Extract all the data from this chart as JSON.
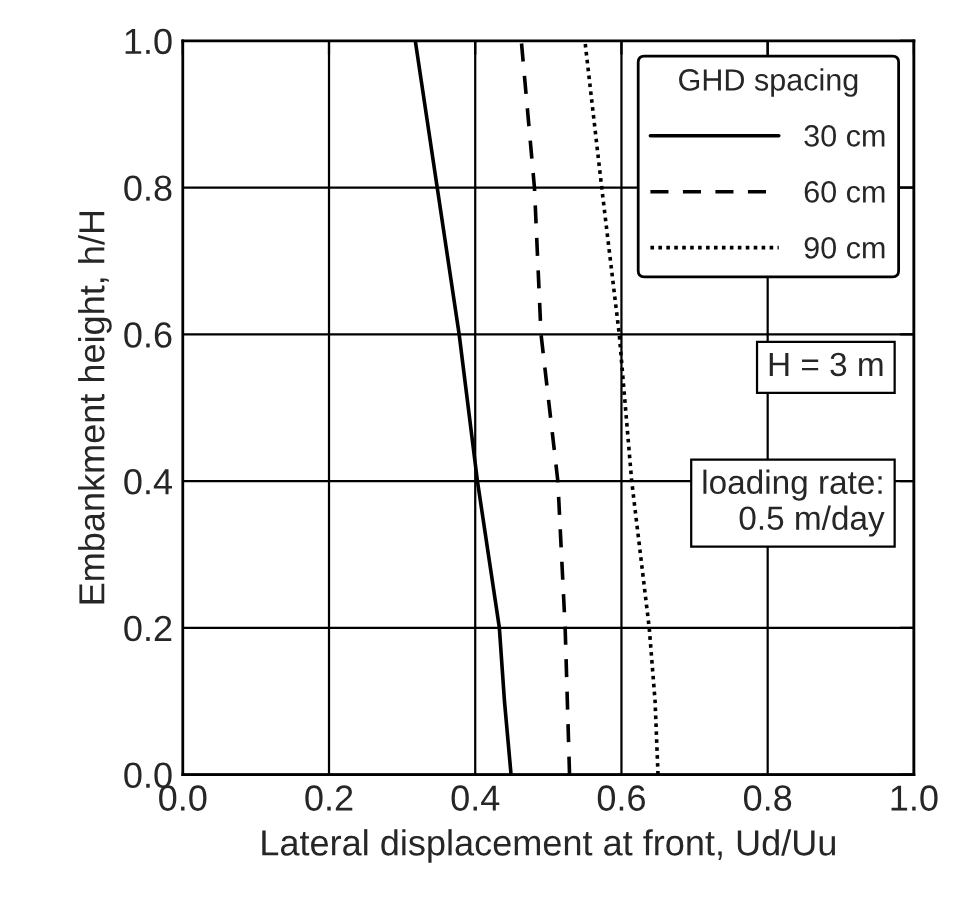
{
  "chart_data": {
    "type": "line",
    "xlabel": "Lateral displacement at front, Ud/Uu",
    "ylabel": "Embankment height, h/H",
    "xlim": [
      0.0,
      1.0
    ],
    "ylim": [
      0.0,
      1.0
    ],
    "xticks": [
      {
        "value": 0.0,
        "label": "0.0"
      },
      0.2,
      0.4,
      0.6,
      0.8,
      {
        "value": 1.0,
        "label": "1.0"
      }
    ],
    "yticks": [
      {
        "value": 0.0,
        "label": "0.0"
      },
      0.2,
      0.4,
      0.6,
      0.8,
      {
        "value": 1.0,
        "label": "1.0"
      }
    ],
    "grid": true,
    "legend": "top right",
    "legend_title": "GHD spacing",
    "marker": "none",
    "annotations": [
      "H = 3 m",
      "loading rate:\n0.5 m/day"
    ],
    "series": [
      {
        "name": "30 cm",
        "color": "#000000",
        "line_style": "solid",
        "x": [
          0.449,
          0.44,
          0.433,
          0.403,
          0.378,
          0.348,
          0.318
        ],
        "values": [
          0.0,
          0.1,
          0.2,
          0.4,
          0.6,
          0.8,
          1.0
        ]
      },
      {
        "name": "60 cm",
        "color": "#000000",
        "line_style": "dashed",
        "x": [
          0.529,
          0.523,
          0.513,
          0.49,
          0.481,
          0.463
        ],
        "values": [
          0.0,
          0.2,
          0.4,
          0.6,
          0.8,
          1.0
        ]
      },
      {
        "name": "90 cm",
        "color": "#000000",
        "line_style": "dotted",
        "x": [
          0.65,
          0.646,
          0.638,
          0.614,
          0.597,
          0.573,
          0.55
        ],
        "values": [
          0.0,
          0.1,
          0.2,
          0.4,
          0.6,
          0.8,
          1.0
        ]
      }
    ]
  }
}
